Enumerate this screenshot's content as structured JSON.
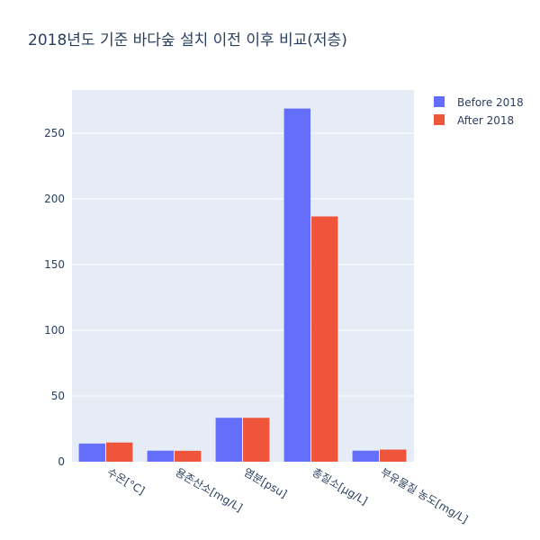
{
  "chart_data": {
    "type": "bar",
    "title": "2018년도 기준 바다숲 설치 이전 이후 비교(저층)",
    "xlabel": "",
    "ylabel": "",
    "categories": [
      "수온[°C]",
      "용존산소[mg/L]",
      "염분[psu]",
      "총질소[μg/L]",
      "부유물질 농도[mg/L]"
    ],
    "series": [
      {
        "name": "Before 2018",
        "color": "#636efa",
        "values": [
          13.8,
          8.4,
          33.4,
          268.7,
          8.4
        ]
      },
      {
        "name": "After 2018",
        "color": "#ef553b",
        "values": [
          14.6,
          8.3,
          33.4,
          186.6,
          9.2
        ]
      }
    ],
    "ylim": [
      0,
      282.8
    ],
    "yticks": [
      0,
      50,
      100,
      150,
      200,
      250
    ],
    "grid": true,
    "legend_position": "top-right",
    "plot_background": "#e5ecf6",
    "grid_color": "#ffffff",
    "text_color": "#2a3f5f"
  }
}
